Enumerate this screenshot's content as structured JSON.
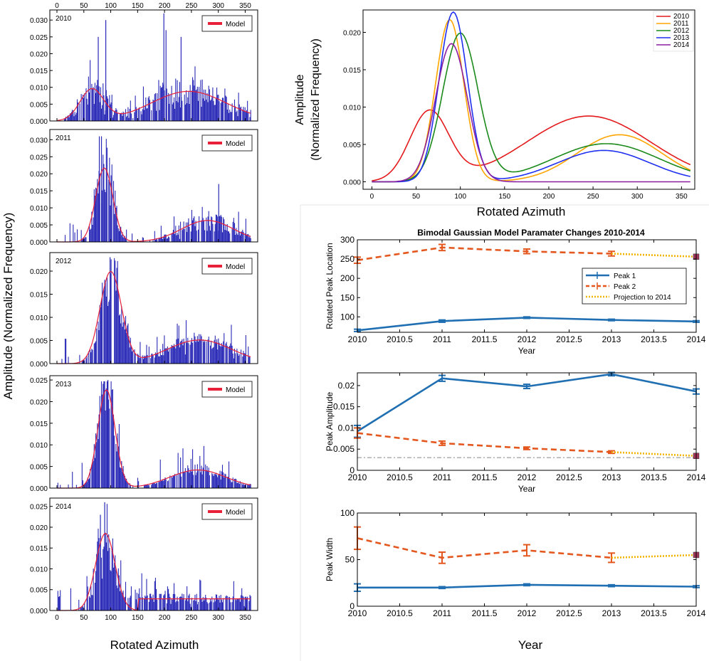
{
  "labels": {
    "left_ylabel": "Amplitude (Normalized Frequency)",
    "left_xlabel": "Rotated Azimuth",
    "tr_ylabel_line1": "Amplitude",
    "tr_ylabel_line2": "(Normalized Frequency)",
    "tr_xlabel": "Rotated Azimuth",
    "br_title": "Bimodal Gaussian Model Paramater Changes 2010-2014",
    "br_year": "Year",
    "br_bottom_xlabel": "Year",
    "model_legend": "Model"
  },
  "colors": {
    "bar": "#2b2bb8",
    "model": "#e8203a",
    "y2010": "#e41a1c",
    "y2011": "#ffa500",
    "y2012": "#1a8a1a",
    "y2013": "#1f2ff0",
    "y2014": "#8b1fa0",
    "peak1": "#1f6fb2",
    "peak2": "#e4571e",
    "projection": "#f0b400",
    "projmarker": "#a0375a",
    "refline": "#888888"
  },
  "chart_data": [
    {
      "type": "bar",
      "name": "hist-2010",
      "year_label": "2010",
      "xlim": [
        0,
        360
      ],
      "ylim": [
        0,
        0.033
      ],
      "yticks": [
        0,
        0.005,
        0.01,
        0.015,
        0.02,
        0.025,
        0.03
      ],
      "ytick_labels": [
        "0.000",
        "0.005",
        "0.010",
        "0.015",
        "0.020",
        "0.025",
        "0.030"
      ],
      "xticks": [
        0,
        50,
        100,
        150,
        200,
        250,
        300,
        350
      ],
      "xticks_top": true,
      "seed": 11,
      "noise": 0.55,
      "model": {
        "a1": 0.0093,
        "m1": 65,
        "s1": 22,
        "a2": 0.0088,
        "m2": 245,
        "s2": 70
      },
      "spikes": [
        [
          76,
          0.025
        ],
        [
          90,
          0.03
        ],
        [
          198,
          0.032
        ],
        [
          202,
          0.027
        ],
        [
          230,
          0.025
        ]
      ]
    },
    {
      "type": "bar",
      "name": "hist-2011",
      "year_label": "2011",
      "xlim": [
        0,
        360
      ],
      "ylim": [
        0,
        0.033
      ],
      "yticks": [
        0,
        0.005,
        0.01,
        0.015,
        0.02,
        0.025,
        0.03
      ],
      "ytick_labels": [
        "0.000",
        "0.005",
        "0.010",
        "0.015",
        "0.020",
        "0.025",
        "0.030"
      ],
      "xticks": [
        0,
        50,
        100,
        150,
        200,
        250,
        300,
        350
      ],
      "xticks_top": false,
      "seed": 22,
      "noise": 0.5,
      "model": {
        "a1": 0.0217,
        "m1": 88,
        "s1": 16,
        "a2": 0.0063,
        "m2": 280,
        "s2": 48
      },
      "spikes": [
        [
          78,
          0.031
        ],
        [
          82,
          0.031
        ],
        [
          300,
          0.017
        ]
      ]
    },
    {
      "type": "bar",
      "name": "hist-2012",
      "year_label": "2012",
      "xlim": [
        0,
        360
      ],
      "ylim": [
        0,
        0.024
      ],
      "yticks": [
        0,
        0.005,
        0.01,
        0.015,
        0.02
      ],
      "ytick_labels": [
        "0.000",
        "0.005",
        "0.010",
        "0.015",
        "0.020"
      ],
      "xticks": [
        0,
        50,
        100,
        150,
        200,
        250,
        300,
        350
      ],
      "xticks_top": false,
      "seed": 33,
      "noise": 0.35,
      "model": {
        "a1": 0.0198,
        "m1": 100,
        "s1": 20,
        "a2": 0.0051,
        "m2": 265,
        "s2": 60
      },
      "spikes": [
        [
          98,
          0.023
        ]
      ]
    },
    {
      "type": "bar",
      "name": "hist-2013",
      "year_label": "2013",
      "xlim": [
        0,
        360
      ],
      "ylim": [
        0,
        0.026
      ],
      "yticks": [
        0,
        0.005,
        0.01,
        0.015,
        0.02,
        0.025
      ],
      "ytick_labels": [
        "0.000",
        "0.005",
        "0.010",
        "0.015",
        "0.020",
        "0.025"
      ],
      "xticks": [
        0,
        50,
        100,
        150,
        200,
        250,
        300,
        350
      ],
      "xticks_top": false,
      "seed": 44,
      "noise": 0.35,
      "model": {
        "a1": 0.0227,
        "m1": 92,
        "s1": 16,
        "a2": 0.0042,
        "m2": 262,
        "s2": 52
      },
      "spikes": [
        [
          94,
          0.025
        ]
      ]
    },
    {
      "type": "bar",
      "name": "hist-2014",
      "year_label": "2014",
      "xlim": [
        0,
        360
      ],
      "ylim": [
        0,
        0.027
      ],
      "yticks": [
        0,
        0.005,
        0.01,
        0.015,
        0.02,
        0.025
      ],
      "ytick_labels": [
        "0.000",
        "0.005",
        "0.010",
        "0.015",
        "0.020",
        "0.025"
      ],
      "xticks": [
        0,
        50,
        100,
        150,
        200,
        250,
        300,
        350
      ],
      "xticks_top": false,
      "seed": 55,
      "noise": 0.45,
      "model": {
        "a1": 0.0185,
        "m1": 90,
        "s1": 18,
        "a2": 0.0,
        "m2": 255,
        "s2": 54,
        "base": 0.0028,
        "tail_from": 150
      },
      "spikes": [
        [
          88,
          0.026
        ],
        [
          80,
          0.023
        ]
      ]
    },
    {
      "type": "line",
      "name": "overlay",
      "xlim": [
        -10,
        365
      ],
      "ylim": [
        -0.001,
        0.023
      ],
      "xticks": [
        0,
        50,
        100,
        150,
        200,
        250,
        300,
        350
      ],
      "yticks": [
        0,
        0.005,
        0.01,
        0.015,
        0.02
      ],
      "ytick_labels": [
        "0.000",
        "0.005",
        "0.010",
        "0.015",
        "0.020"
      ],
      "series": [
        {
          "name": "2010",
          "color_key": "y2010",
          "a1": 0.0093,
          "m1": 65,
          "s1": 22,
          "a2": 0.0088,
          "m2": 245,
          "s2": 70
        },
        {
          "name": "2011",
          "color_key": "y2011",
          "a1": 0.0217,
          "m1": 88,
          "s1": 16,
          "a2": 0.0063,
          "m2": 280,
          "s2": 48
        },
        {
          "name": "2012",
          "color_key": "y2012",
          "a1": 0.0198,
          "m1": 100,
          "s1": 20,
          "a2": 0.0051,
          "m2": 265,
          "s2": 60
        },
        {
          "name": "2013",
          "color_key": "y2013",
          "a1": 0.0227,
          "m1": 92,
          "s1": 16,
          "a2": 0.0042,
          "m2": 262,
          "s2": 52
        },
        {
          "name": "2014",
          "color_key": "y2014",
          "a1": 0.0185,
          "m1": 90,
          "s1": 18,
          "a2": 0,
          "m2": 255,
          "s2": 54
        }
      ]
    },
    {
      "type": "line",
      "name": "peak-location",
      "ylabel": "Rotated Peak Location",
      "xlabel": "Year",
      "xlim": [
        2010,
        2014
      ],
      "ylim": [
        60,
        300
      ],
      "xticks": [
        2010,
        2010.5,
        2011,
        2011.5,
        2012,
        2012.5,
        2013,
        2013.5,
        2014
      ],
      "yticks": [
        100,
        150,
        200,
        250,
        300
      ],
      "series": [
        {
          "name": "Peak 1",
          "color_key": "peak1",
          "x": [
            2010,
            2011,
            2012,
            2013,
            2014
          ],
          "y": [
            65,
            89,
            98,
            92,
            88
          ],
          "err": [
            3,
            3,
            2,
            2,
            2
          ]
        },
        {
          "name": "Peak 2",
          "color_key": "peak2",
          "x": [
            2010,
            2011,
            2012,
            2013
          ],
          "y": [
            247,
            280,
            270,
            264
          ],
          "err": [
            8,
            8,
            6,
            6
          ]
        },
        {
          "name": "Projection to 2014",
          "color_key": "projection",
          "x": [
            2013,
            2014
          ],
          "y": [
            264,
            256
          ]
        }
      ],
      "legend": [
        "Peak 1",
        "Peak 2",
        "Projection to 2014"
      ]
    },
    {
      "type": "line",
      "name": "peak-amplitude",
      "ylabel": "Peak Amplitude",
      "xlabel": "Year",
      "xlim": [
        2010,
        2014
      ],
      "ylim": [
        0,
        0.023
      ],
      "xticks": [
        2010,
        2010.5,
        2011,
        2011.5,
        2012,
        2012.5,
        2013,
        2013.5,
        2014
      ],
      "yticks": [
        0,
        0.005,
        0.01,
        0.015,
        0.02
      ],
      "ytick_labels": [
        "0",
        "0.005",
        "0.01",
        "0.015",
        "0.02"
      ],
      "refline": 0.003,
      "series": [
        {
          "name": "Peak 1",
          "color_key": "peak1",
          "x": [
            2010,
            2011,
            2012,
            2013,
            2014
          ],
          "y": [
            0.0092,
            0.0217,
            0.0198,
            0.0227,
            0.0186
          ],
          "err": [
            0.0014,
            0.0007,
            0.0005,
            0.0004,
            0.0006
          ]
        },
        {
          "name": "Peak 2",
          "color_key": "peak2",
          "x": [
            2010,
            2011,
            2012,
            2013
          ],
          "y": [
            0.0088,
            0.0064,
            0.0052,
            0.0043
          ],
          "err": [
            0.0012,
            0.0005,
            0.0003,
            0.0003
          ]
        },
        {
          "name": "Projection to 2014",
          "color_key": "projection",
          "x": [
            2013,
            2014
          ],
          "y": [
            0.0043,
            0.0034
          ]
        }
      ]
    },
    {
      "type": "line",
      "name": "peak-width",
      "ylabel": "Peak Width",
      "xlabel": "",
      "xlim": [
        2010,
        2014
      ],
      "ylim": [
        0,
        100
      ],
      "xticks": [
        2010,
        2010.5,
        2011,
        2011.5,
        2012,
        2012.5,
        2013,
        2013.5,
        2014
      ],
      "yticks": [
        0,
        50,
        100
      ],
      "series": [
        {
          "name": "Peak 1",
          "color_key": "peak1",
          "x": [
            2010,
            2011,
            2012,
            2013,
            2014
          ],
          "y": [
            20,
            20,
            23,
            22,
            21
          ],
          "err": [
            4,
            1,
            1,
            1,
            1
          ]
        },
        {
          "name": "Peak 2",
          "color_key": "peak2",
          "x": [
            2010,
            2011,
            2012,
            2013
          ],
          "y": [
            73,
            52,
            60,
            52
          ],
          "err": [
            12,
            6,
            6,
            5
          ]
        },
        {
          "name": "Projection to 2014",
          "color_key": "projection",
          "x": [
            2013,
            2014
          ],
          "y": [
            52,
            55
          ]
        }
      ]
    }
  ]
}
